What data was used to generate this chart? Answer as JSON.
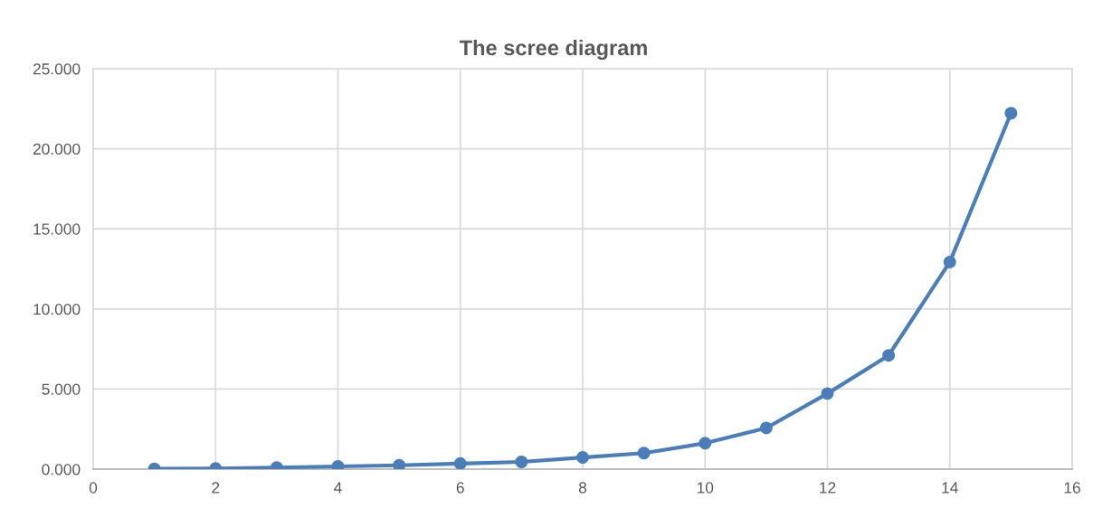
{
  "chart_data": {
    "type": "line",
    "title": "The scree diagram",
    "x": [
      1,
      2,
      3,
      4,
      5,
      6,
      7,
      8,
      9,
      10,
      11,
      12,
      13,
      14,
      15
    ],
    "series": [
      {
        "color": "#4a7ebb",
        "values": [
          0.02,
          0.04,
          0.1,
          0.17,
          0.24,
          0.35,
          0.45,
          0.73,
          1.0,
          1.62,
          2.57,
          4.72,
          7.1,
          12.93,
          22.22
        ]
      }
    ],
    "xlim": [
      0,
      16
    ],
    "xticks": [
      0,
      2,
      4,
      6,
      8,
      10,
      12,
      14,
      16
    ],
    "ylim": [
      0,
      25
    ],
    "yticks": [
      {
        "value": 0,
        "label": "0.000"
      },
      {
        "value": 5,
        "label": "5.000"
      },
      {
        "value": 10,
        "label": "10.000"
      },
      {
        "value": 15,
        "label": "15.000"
      },
      {
        "value": 20,
        "label": "20.000"
      },
      {
        "value": 25,
        "label": "25.000"
      }
    ],
    "grid": true,
    "marker": "circle",
    "line_style": "solid"
  }
}
